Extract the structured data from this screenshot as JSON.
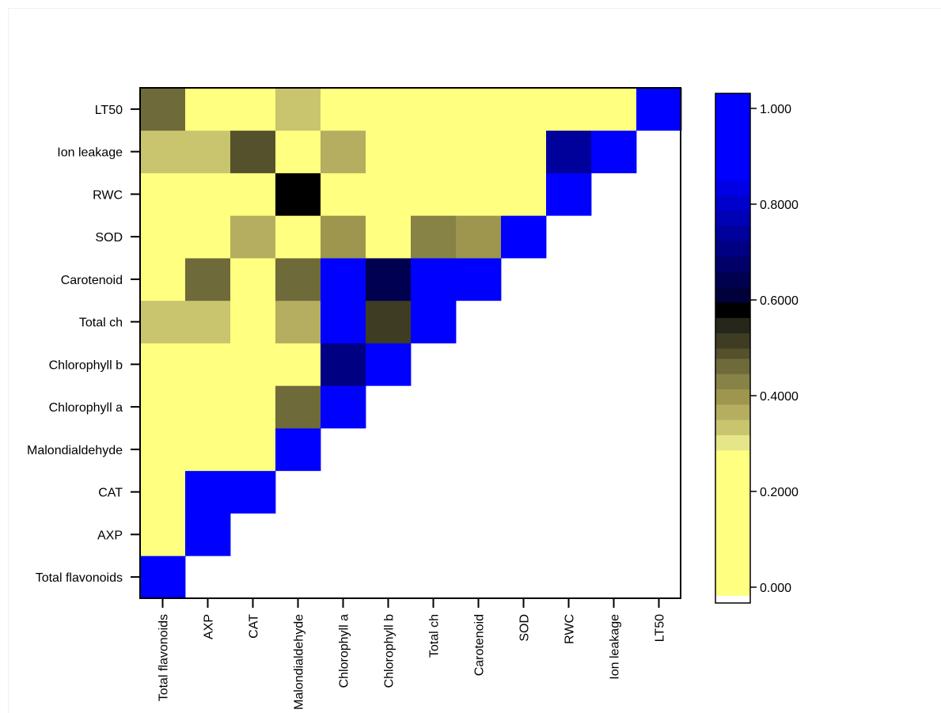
{
  "chart_data": {
    "type": "heatmap",
    "title": "",
    "xlabel": "",
    "ylabel": "",
    "labels": [
      "Total flavonoids",
      "AXP",
      "CAT",
      "Malondialdehyde",
      "Chlorophyll a",
      "Chlorophyll b",
      "Total ch",
      "Carotenoid",
      "SOD",
      "RWC",
      "Ion leakage",
      "LT50"
    ],
    "matrix_lower": [
      [
        1.0
      ],
      [
        0.1,
        1.0
      ],
      [
        0.1,
        1.0,
        1.0
      ],
      [
        0.1,
        0.1,
        0.1,
        1.0
      ],
      [
        0.27,
        0.1,
        0.1,
        0.45,
        1.0
      ],
      [
        0.1,
        0.1,
        0.1,
        0.1,
        0.7,
        1.0
      ],
      [
        0.33,
        0.33,
        0.1,
        0.37,
        1.0,
        0.52,
        1.0
      ],
      [
        0.1,
        0.45,
        0.1,
        0.45,
        1.0,
        0.62,
        1.0,
        1.0
      ],
      [
        0.1,
        0.1,
        0.37,
        0.1,
        0.39,
        0.1,
        0.43,
        0.39,
        1.0
      ],
      [
        0.1,
        0.1,
        0.1,
        0.58,
        0.1,
        0.1,
        0.1,
        0.1,
        0.1,
        1.0
      ],
      [
        0.33,
        0.33,
        0.49,
        0.1,
        0.37,
        0.1,
        0.1,
        0.1,
        0.27,
        0.72,
        1.0
      ],
      [
        0.45,
        0.1,
        0.1,
        0.33,
        0.1,
        0.1,
        0.1,
        0.1,
        0.1,
        0.1,
        0.1,
        1.0
      ]
    ],
    "colorbar": {
      "ticks": [
        "1.000",
        "0.8000",
        "0.6000",
        "0.4000",
        "0.2000",
        "0.000"
      ],
      "tick_values": [
        1.0,
        0.8,
        0.6,
        0.4,
        0.2,
        0.0
      ],
      "stops": [
        {
          "value": 0.0,
          "color": "#ffffff"
        },
        {
          "value": 0.015,
          "color": "#ffff80"
        },
        {
          "value": 0.27,
          "color": "#ffff80"
        },
        {
          "value": 0.3,
          "color": "#e5e58a"
        },
        {
          "value": 0.33,
          "color": "#c9c46e"
        },
        {
          "value": 0.36,
          "color": "#b5ad60"
        },
        {
          "value": 0.39,
          "color": "#9e964e"
        },
        {
          "value": 0.42,
          "color": "#878246"
        },
        {
          "value": 0.45,
          "color": "#6f6a3a"
        },
        {
          "value": 0.48,
          "color": "#55512c"
        },
        {
          "value": 0.5,
          "color": "#3e3c22"
        },
        {
          "value": 0.53,
          "color": "#26261a"
        },
        {
          "value": 0.56,
          "color": "#000000"
        },
        {
          "value": 0.59,
          "color": "#00003a"
        },
        {
          "value": 0.62,
          "color": "#000050"
        },
        {
          "value": 0.65,
          "color": "#000068"
        },
        {
          "value": 0.68,
          "color": "#000082"
        },
        {
          "value": 0.71,
          "color": "#00009a"
        },
        {
          "value": 0.74,
          "color": "#0000b4"
        },
        {
          "value": 0.77,
          "color": "#0000cc"
        },
        {
          "value": 0.8,
          "color": "#0000e6"
        },
        {
          "value": 0.83,
          "color": "#0000ff"
        },
        {
          "value": 0.985,
          "color": "#0000ff"
        },
        {
          "value": 1.0,
          "color": "#ffffff"
        }
      ]
    },
    "colors": {
      "low": "#ffff80",
      "high": "#0000ff",
      "mid": "#000000"
    }
  }
}
